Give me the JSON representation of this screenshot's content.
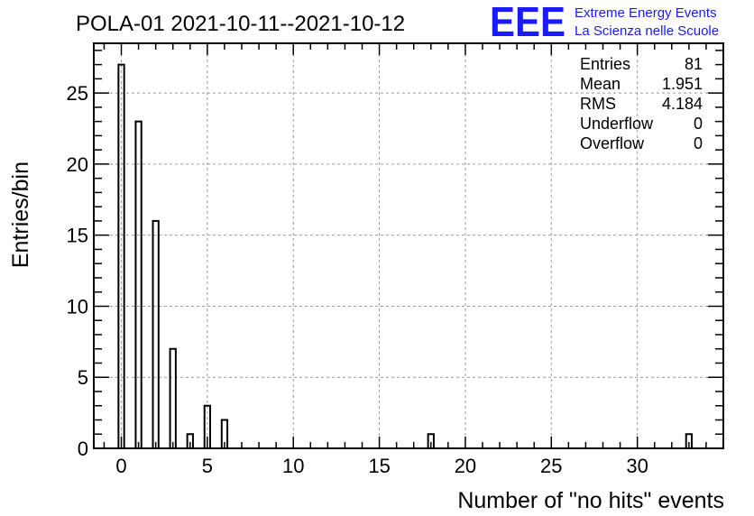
{
  "chart_data": {
    "type": "bar",
    "title": "POLA-01 2021-10-11--2021-10-12",
    "xlabel": "Number of \"no hits\" events",
    "ylabel": "Entries/bin",
    "xlim": [
      -1.6,
      35
    ],
    "ylim": [
      0,
      28.5
    ],
    "grid": true,
    "x_ticks": [
      0,
      5,
      10,
      15,
      20,
      25,
      30
    ],
    "y_ticks": [
      0,
      5,
      10,
      15,
      20,
      25
    ],
    "bin_width": 0.33,
    "bins": [
      {
        "x": 0,
        "value": 27
      },
      {
        "x": 1,
        "value": 23
      },
      {
        "x": 2,
        "value": 16
      },
      {
        "x": 3,
        "value": 7
      },
      {
        "x": 4,
        "value": 1
      },
      {
        "x": 5,
        "value": 3
      },
      {
        "x": 6,
        "value": 2
      },
      {
        "x": 18,
        "value": 1
      },
      {
        "x": 33,
        "value": 1
      }
    ],
    "stats": [
      {
        "label": "Entries",
        "value": "81"
      },
      {
        "label": "Mean",
        "value": "1.951"
      },
      {
        "label": "RMS",
        "value": "4.184"
      },
      {
        "label": "Underflow",
        "value": "0"
      },
      {
        "label": "Overflow",
        "value": "0"
      }
    ]
  },
  "logo": {
    "text": "EEE",
    "line1": "Extreme Energy Events",
    "line2": "La Scienza nelle Scuole",
    "color": "#1a1aff"
  }
}
